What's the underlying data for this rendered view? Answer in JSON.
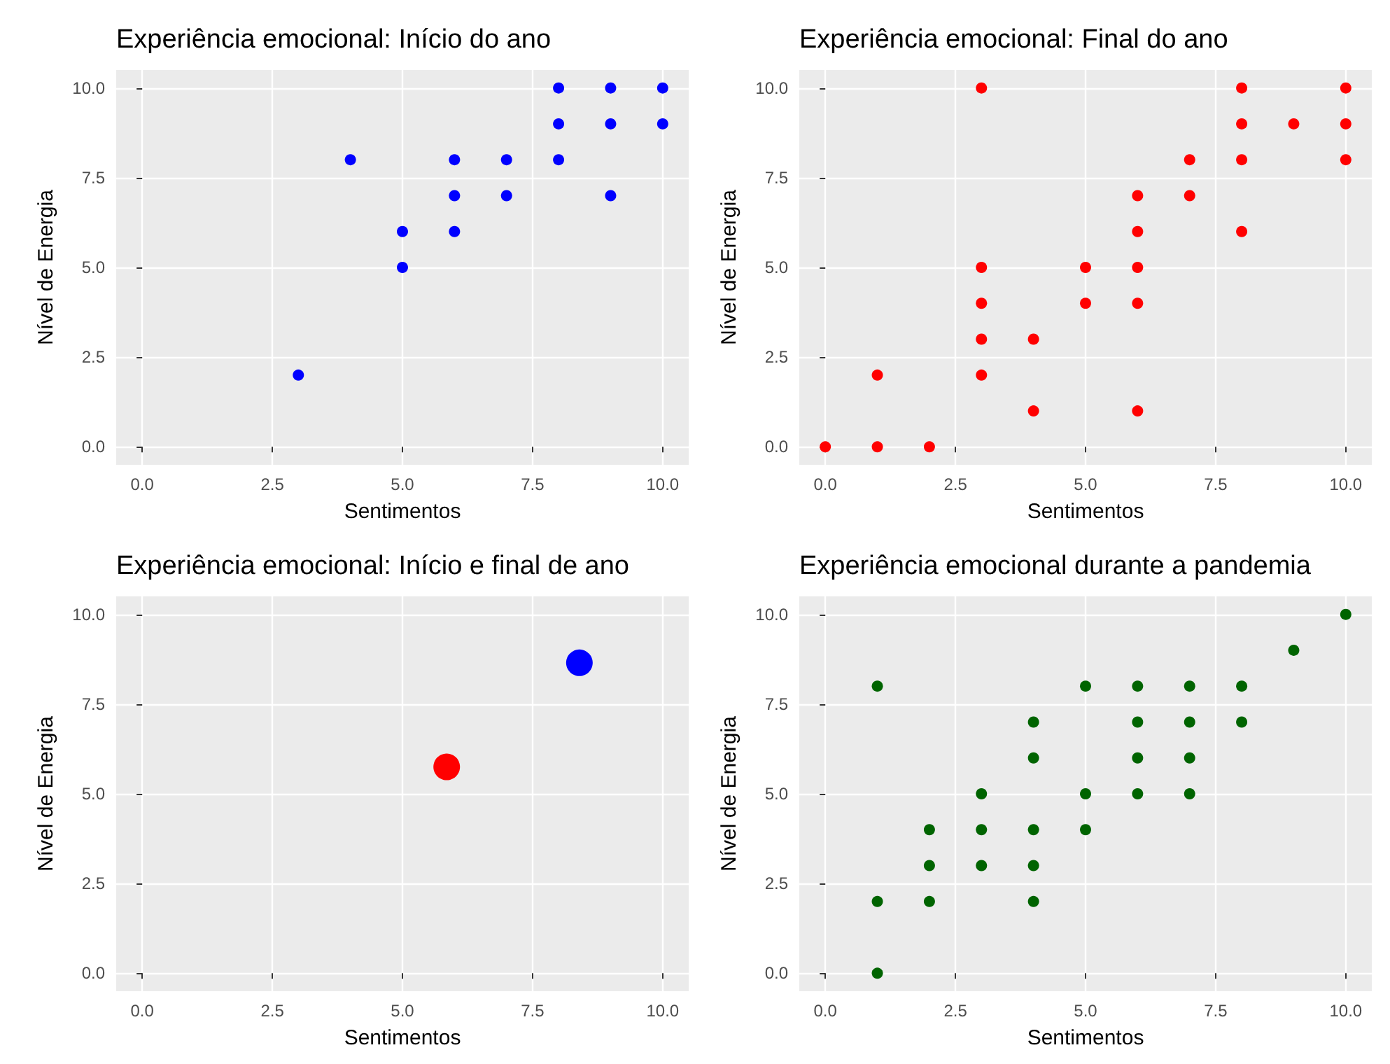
{
  "chart_data": [
    {
      "type": "scatter",
      "title": "Experiência emocional: Início do ano",
      "xlabel": "Sentimentos",
      "ylabel": "Nível de Energia",
      "xlim": [
        -0.5,
        10.5
      ],
      "ylim": [
        -0.5,
        10.5
      ],
      "xticks": [
        {
          "value": 0,
          "label": "0.0"
        },
        {
          "value": 2.5,
          "label": "2.5"
        },
        {
          "value": 5,
          "label": "5.0"
        },
        {
          "value": 7.5,
          "label": "7.5"
        },
        {
          "value": 10,
          "label": "10.0"
        }
      ],
      "yticks": [
        {
          "value": 0,
          "label": "0.0"
        },
        {
          "value": 2.5,
          "label": "2.5"
        },
        {
          "value": 5,
          "label": "5.0"
        },
        {
          "value": 7.5,
          "label": "7.5"
        },
        {
          "value": 10,
          "label": "10.0"
        }
      ],
      "grid": true,
      "marker": "circle",
      "series": [
        {
          "color": "#0000ff",
          "x": [
            3,
            4,
            5,
            5,
            6,
            6,
            6,
            7,
            7,
            8,
            8,
            8,
            9,
            9,
            9,
            10,
            10
          ],
          "values": [
            2,
            8,
            6,
            5,
            8,
            7,
            6,
            8,
            7,
            10,
            9,
            8,
            10,
            9,
            7,
            10,
            9
          ]
        }
      ]
    },
    {
      "type": "scatter",
      "title": "Experiência emocional: Final do ano",
      "xlabel": "Sentimentos",
      "ylabel": "Nível de Energia",
      "xlim": [
        -0.5,
        10.5
      ],
      "ylim": [
        -0.5,
        10.5
      ],
      "xticks": [
        {
          "value": 0,
          "label": "0.0"
        },
        {
          "value": 2.5,
          "label": "2.5"
        },
        {
          "value": 5,
          "label": "5.0"
        },
        {
          "value": 7.5,
          "label": "7.5"
        },
        {
          "value": 10,
          "label": "10.0"
        }
      ],
      "yticks": [
        {
          "value": 0,
          "label": "0.0"
        },
        {
          "value": 2.5,
          "label": "2.5"
        },
        {
          "value": 5,
          "label": "5.0"
        },
        {
          "value": 7.5,
          "label": "7.5"
        },
        {
          "value": 10,
          "label": "10.0"
        }
      ],
      "grid": true,
      "marker": "circle",
      "series": [
        {
          "color": "#ff0000",
          "x": [
            0,
            1,
            1,
            2,
            3,
            3,
            3,
            3,
            3,
            4,
            4,
            5,
            5,
            6,
            6,
            6,
            6,
            6,
            7,
            7,
            8,
            8,
            8,
            8,
            9,
            10,
            10,
            10
          ],
          "values": [
            0,
            2,
            0,
            0,
            10,
            5,
            4,
            3,
            2,
            3,
            1,
            5,
            4,
            7,
            6,
            5,
            4,
            1,
            8,
            7,
            10,
            9,
            8,
            6,
            9,
            10,
            9,
            8
          ]
        }
      ]
    },
    {
      "type": "scatter",
      "title": "Experiência emocional: Início e final de ano",
      "xlabel": "Sentimentos",
      "ylabel": "Nível de Energia",
      "xlim": [
        -0.5,
        10.5
      ],
      "ylim": [
        -0.5,
        10.5
      ],
      "xticks": [
        {
          "value": 0,
          "label": "0.0"
        },
        {
          "value": 2.5,
          "label": "2.5"
        },
        {
          "value": 5,
          "label": "5.0"
        },
        {
          "value": 7.5,
          "label": "7.5"
        },
        {
          "value": 10,
          "label": "10.0"
        }
      ],
      "yticks": [
        {
          "value": 0,
          "label": "0.0"
        },
        {
          "value": 2.5,
          "label": "2.5"
        },
        {
          "value": 5,
          "label": "5.0"
        },
        {
          "value": 7.5,
          "label": "7.5"
        },
        {
          "value": 10,
          "label": "10.0"
        }
      ],
      "grid": true,
      "marker": "circle",
      "series": [
        {
          "color": "#ff0000",
          "x": [
            5.85
          ],
          "values": [
            5.75
          ]
        },
        {
          "color": "#0000ff",
          "x": [
            8.4
          ],
          "values": [
            8.65
          ]
        }
      ]
    },
    {
      "type": "scatter",
      "title": "Experiência emocional durante a pandemia",
      "xlabel": "Sentimentos",
      "ylabel": "Nível de Energia",
      "xlim": [
        -0.5,
        10.5
      ],
      "ylim": [
        -0.5,
        10.5
      ],
      "xticks": [
        {
          "value": 0,
          "label": "0.0"
        },
        {
          "value": 2.5,
          "label": "2.5"
        },
        {
          "value": 5,
          "label": "5.0"
        },
        {
          "value": 7.5,
          "label": "7.5"
        },
        {
          "value": 10,
          "label": "10.0"
        }
      ],
      "yticks": [
        {
          "value": 0,
          "label": "0.0"
        },
        {
          "value": 2.5,
          "label": "2.5"
        },
        {
          "value": 5,
          "label": "5.0"
        },
        {
          "value": 7.5,
          "label": "7.5"
        },
        {
          "value": 10,
          "label": "10.0"
        }
      ],
      "grid": true,
      "marker": "circle",
      "series": [
        {
          "color": "#006400",
          "x": [
            1,
            1,
            1,
            2,
            2,
            2,
            3,
            3,
            3,
            4,
            4,
            4,
            4,
            4,
            5,
            5,
            5,
            6,
            6,
            6,
            6,
            7,
            7,
            7,
            7,
            8,
            8,
            9,
            10
          ],
          "values": [
            8,
            2,
            0,
            4,
            3,
            2,
            5,
            4,
            3,
            7,
            6,
            4,
            3,
            2,
            8,
            5,
            4,
            8,
            7,
            6,
            5,
            8,
            7,
            6,
            5,
            8,
            7,
            9,
            10
          ]
        }
      ]
    }
  ]
}
